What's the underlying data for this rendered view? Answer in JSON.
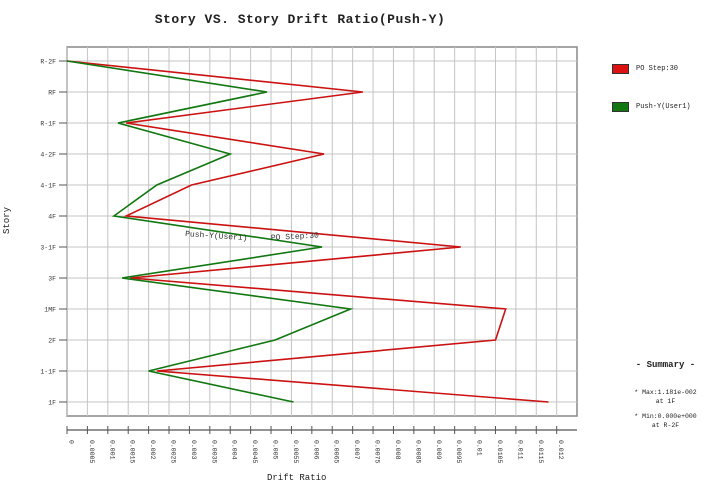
{
  "title": "Story VS. Story Drift Ratio(Push-Y)",
  "chart_data": {
    "type": "line",
    "title": "Story VS. Story Drift Ratio(Push-Y)",
    "xlabel": "Drift Ratio",
    "ylabel": "Story",
    "xlim": [
      0,
      0.0125
    ],
    "grid": true,
    "legend_position": "right",
    "x_ticks": [
      "0",
      "0.0005",
      "0.001",
      "0.0015",
      "0.002",
      "0.0025",
      "0.003",
      "0.0035",
      "0.004",
      "0.0045",
      "0.005",
      "0.0055",
      "0.006",
      "0.0065",
      "0.007",
      "0.0075",
      "0.008",
      "0.0085",
      "0.009",
      "0.0095",
      "0.01",
      "0.0105",
      "0.011",
      "0.0115",
      "0.012"
    ],
    "categories": [
      "R-2F",
      "RF",
      "R-1F",
      "4-2F",
      "4-1F",
      "4F",
      "3-1F",
      "3F",
      "1MF",
      "2F",
      "1-1F",
      "1F"
    ],
    "series": [
      {
        "name": "PO Step:30",
        "color": "#cc1111",
        "values": [
          0.0,
          0.00725,
          0.00145,
          0.0063,
          0.00305,
          0.00145,
          0.00965,
          0.00155,
          0.01075,
          0.0105,
          0.0022,
          0.0118
        ]
      },
      {
        "name": "Push-Y(User1)",
        "color": "#117711",
        "values": [
          0.0,
          0.0049,
          0.00125,
          0.004,
          0.0022,
          0.00115,
          0.00625,
          0.00135,
          0.00695,
          0.0051,
          0.002,
          0.00555
        ]
      }
    ],
    "annotations": [
      {
        "text": "Push-Y(User1)",
        "near": "3-1F"
      },
      {
        "text": "PO Step:30",
        "near": "3-1F"
      }
    ]
  },
  "axes": {
    "ylabel": "Story",
    "xlabel": "Drift Ratio"
  },
  "legend": {
    "items": [
      {
        "label": "PO Step:30",
        "color": "#dd1111"
      },
      {
        "label": "Push-Y(User1)",
        "color": "#117711"
      }
    ]
  },
  "summary": {
    "title": "- Summary -",
    "max_line": "* Max:1.181e-002",
    "max_at": "at 1F",
    "min_line": "* Min:0.000e+000",
    "min_at": "at R-2F"
  },
  "annotations": {
    "push_label": "Push-Y(User1)",
    "po_label": "PO Step:30"
  }
}
